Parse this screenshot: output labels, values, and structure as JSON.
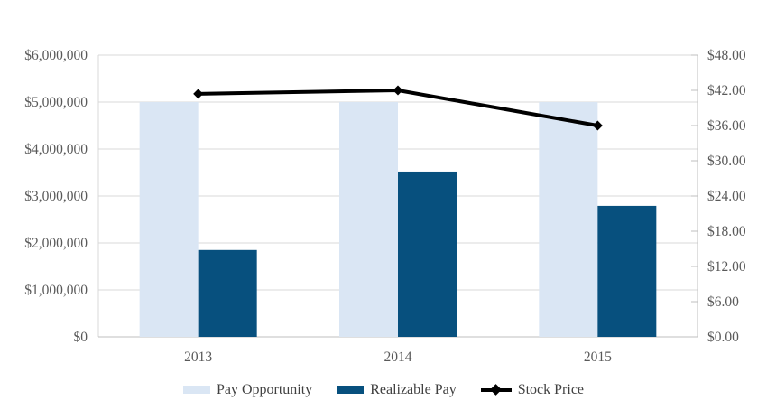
{
  "chart_data": {
    "type": "combo",
    "title": "",
    "categories": [
      "2013",
      "2014",
      "2015"
    ],
    "series": [
      {
        "name": "Pay Opportunity",
        "type": "bar",
        "axis": "left",
        "color": "#DAE6F4",
        "values": [
          5000000,
          5000000,
          5000000
        ]
      },
      {
        "name": "Realizable Pay",
        "type": "bar",
        "axis": "left",
        "color": "#07507E",
        "values": [
          1850000,
          3520000,
          2790000
        ]
      },
      {
        "name": "Stock Price",
        "type": "line",
        "axis": "right",
        "color": "#000000",
        "marker": "diamond",
        "values": [
          41.4,
          42.0,
          36.0
        ]
      }
    ],
    "y_left_axis": {
      "min": 0,
      "max": 6000000,
      "step": 1000000,
      "tick_labels": [
        "$0",
        "$1,000,000",
        "$2,000,000",
        "$3,000,000",
        "$4,000,000",
        "$5,000,000",
        "$6,000,000"
      ]
    },
    "y_right_axis": {
      "min": 0,
      "max": 48,
      "step": 6,
      "tick_labels": [
        "$0.00",
        "$6.00",
        "$12.00",
        "$18.00",
        "$24.00",
        "$30.00",
        "$36.00",
        "$42.00",
        "$48.00"
      ]
    },
    "grid": true,
    "legend_position": "bottom",
    "styles": {
      "background": "#FFFFFF",
      "grid_color": "#D9D9D9",
      "axis_color": "#BFBFBF",
      "tick_label_color": "#595959",
      "legend_text_color": "#404040"
    }
  }
}
